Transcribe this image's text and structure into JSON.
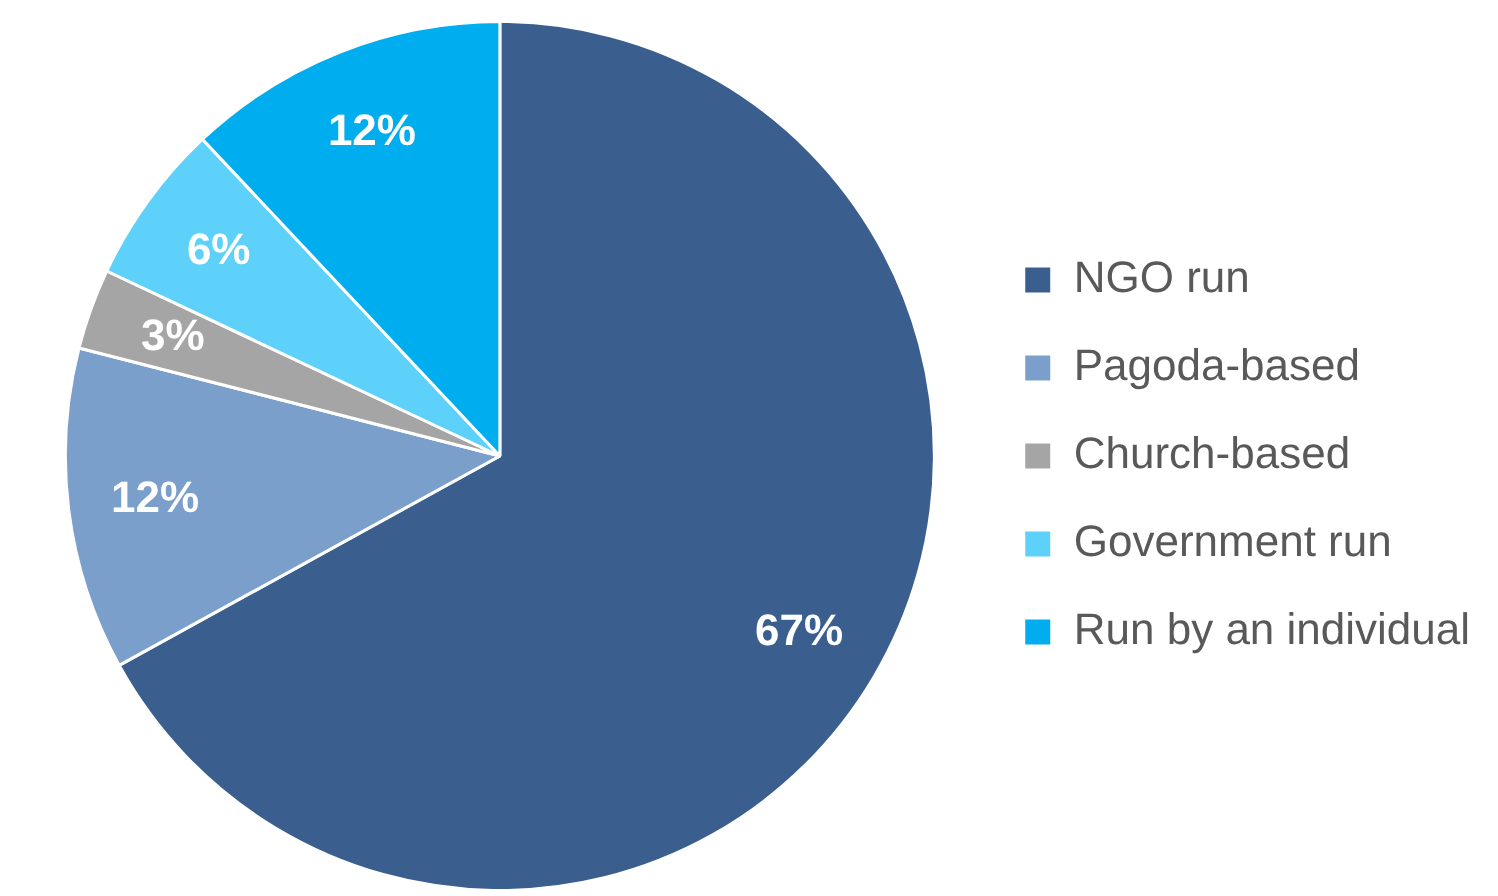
{
  "chart_data": {
    "type": "pie",
    "categories": [
      "NGO run",
      "Pagoda-based",
      "Church-based",
      "Government run",
      "Run by an individual"
    ],
    "values": [
      67,
      12,
      3,
      6,
      12
    ],
    "colors": [
      "#3a5f8e",
      "#7b9fcb",
      "#a5a5a5",
      "#5dd1fa",
      "#00aeef"
    ],
    "value_labels": [
      "67%",
      "12%",
      "3%",
      "6%",
      "12%"
    ],
    "legend": "right"
  }
}
